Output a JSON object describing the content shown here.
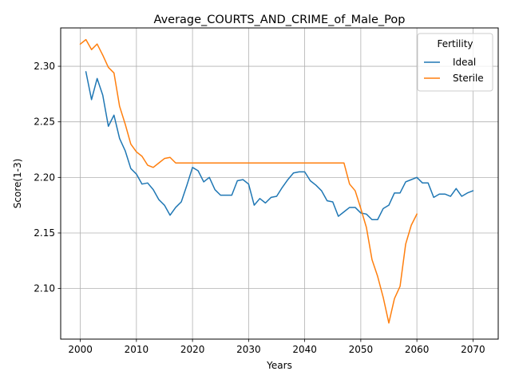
{
  "chart_data": {
    "type": "line",
    "title": "Average_COURTS_AND_CRIME_of_Male_Pop",
    "xlabel": "Years",
    "ylabel": "Score(1-3)",
    "xlim": [
      1996.5,
      2074.5
    ],
    "ylim": [
      2.0545,
      2.3345
    ],
    "xticks": [
      2000,
      2010,
      2020,
      2030,
      2040,
      2050,
      2060,
      2070
    ],
    "yticks": [
      2.1,
      2.15,
      2.2,
      2.25,
      2.3
    ],
    "ytick_labels": [
      "2.10",
      "2.15",
      "2.20",
      "2.25",
      "2.30"
    ],
    "grid": true,
    "legend": {
      "title": "Fertility",
      "placement": "top-right"
    },
    "series": [
      {
        "name": "Ideal",
        "color": "#1f77b4",
        "x": [
          2001,
          2002,
          2003,
          2004,
          2005,
          2006,
          2007,
          2008,
          2009,
          2010,
          2011,
          2012,
          2013,
          2014,
          2015,
          2016,
          2017,
          2018,
          2019,
          2020,
          2021,
          2022,
          2023,
          2024,
          2025,
          2026,
          2027,
          2028,
          2029,
          2030,
          2031,
          2032,
          2033,
          2034,
          2035,
          2036,
          2037,
          2038,
          2039,
          2040,
          2041,
          2042,
          2043,
          2044,
          2045,
          2046,
          2047,
          2048,
          2049,
          2050,
          2051,
          2052,
          2053,
          2054,
          2055,
          2056,
          2057,
          2058,
          2059,
          2060,
          2061,
          2062,
          2063,
          2064,
          2065,
          2066,
          2067,
          2068,
          2069,
          2070
        ],
        "values": [
          2.295,
          2.27,
          2.289,
          2.274,
          2.246,
          2.256,
          2.235,
          2.224,
          2.208,
          2.203,
          2.194,
          2.195,
          2.189,
          2.18,
          2.175,
          2.166,
          2.173,
          2.178,
          2.193,
          2.209,
          2.206,
          2.196,
          2.2,
          2.189,
          2.184,
          2.184,
          2.184,
          2.197,
          2.198,
          2.194,
          2.175,
          2.181,
          2.177,
          2.182,
          2.183,
          2.191,
          2.198,
          2.204,
          2.205,
          2.205,
          2.197,
          2.193,
          2.188,
          2.179,
          2.178,
          2.165,
          2.169,
          2.173,
          2.173,
          2.168,
          2.167,
          2.162,
          2.162,
          2.172,
          2.175,
          2.186,
          2.186,
          2.196,
          2.198,
          2.2,
          2.195,
          2.195,
          2.182,
          2.185,
          2.185,
          2.183,
          2.19,
          2.183,
          2.186,
          2.188
        ]
      },
      {
        "name": "Sterile",
        "color": "#ff7f0e",
        "x": [
          2000,
          2001,
          2002,
          2003,
          2004,
          2005,
          2006,
          2007,
          2008,
          2009,
          2010,
          2011,
          2012,
          2013,
          2014,
          2015,
          2016,
          2017,
          2018,
          2019,
          2020,
          2021,
          2022,
          2023,
          2024,
          2025,
          2026,
          2027,
          2028,
          2029,
          2030,
          2031,
          2032,
          2033,
          2034,
          2035,
          2036,
          2037,
          2038,
          2039,
          2040,
          2041,
          2042,
          2043,
          2044,
          2045,
          2046,
          2047,
          2048,
          2049,
          2050,
          2051,
          2052,
          2053,
          2054,
          2055,
          2056,
          2057,
          2058,
          2059,
          2060
        ],
        "values": [
          2.32,
          2.324,
          2.315,
          2.32,
          2.31,
          2.299,
          2.294,
          2.264,
          2.248,
          2.23,
          2.223,
          2.219,
          2.211,
          2.209,
          2.213,
          2.217,
          2.218,
          2.213,
          2.213,
          2.213,
          2.213,
          2.213,
          2.213,
          2.213,
          2.213,
          2.213,
          2.213,
          2.213,
          2.213,
          2.213,
          2.213,
          2.213,
          2.213,
          2.213,
          2.213,
          2.213,
          2.213,
          2.213,
          2.213,
          2.213,
          2.213,
          2.213,
          2.213,
          2.213,
          2.213,
          2.213,
          2.213,
          2.213,
          2.194,
          2.188,
          2.172,
          2.155,
          2.126,
          2.111,
          2.092,
          2.069,
          2.091,
          2.102,
          2.14,
          2.157,
          2.167
        ]
      }
    ]
  }
}
